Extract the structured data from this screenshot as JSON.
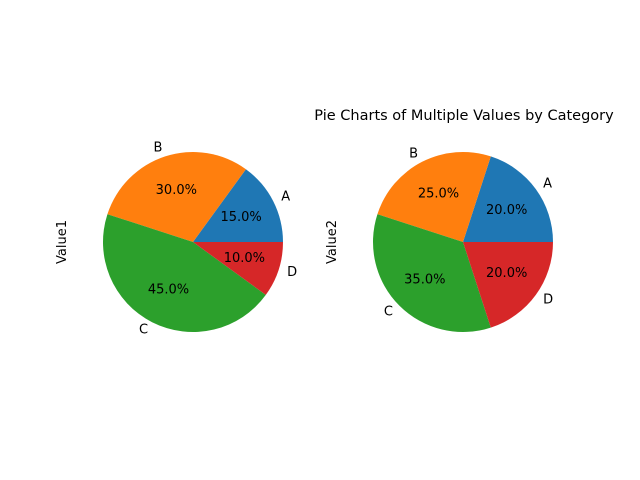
{
  "chart_data": [
    {
      "type": "pie",
      "ylabel": "Value1",
      "categories": [
        "A",
        "B",
        "C",
        "D"
      ],
      "values": [
        15,
        30,
        45,
        10
      ],
      "percent_labels": [
        "15.0%",
        "30.0%",
        "45.0%",
        "10.0%"
      ],
      "start_angle": 0,
      "direction": "counterclockwise",
      "colors": [
        "#1f77b4",
        "#ff7f0e",
        "#2ca02c",
        "#d62728"
      ]
    },
    {
      "type": "pie",
      "title": "Pie Charts of Multiple Values by Category",
      "ylabel": "Value2",
      "categories": [
        "A",
        "B",
        "C",
        "D"
      ],
      "values": [
        20,
        25,
        35,
        20
      ],
      "percent_labels": [
        "20.0%",
        "25.0%",
        "35.0%",
        "20.0%"
      ],
      "start_angle": 0,
      "direction": "counterclockwise",
      "colors": [
        "#1f77b4",
        "#ff7f0e",
        "#2ca02c",
        "#d62728"
      ]
    }
  ]
}
